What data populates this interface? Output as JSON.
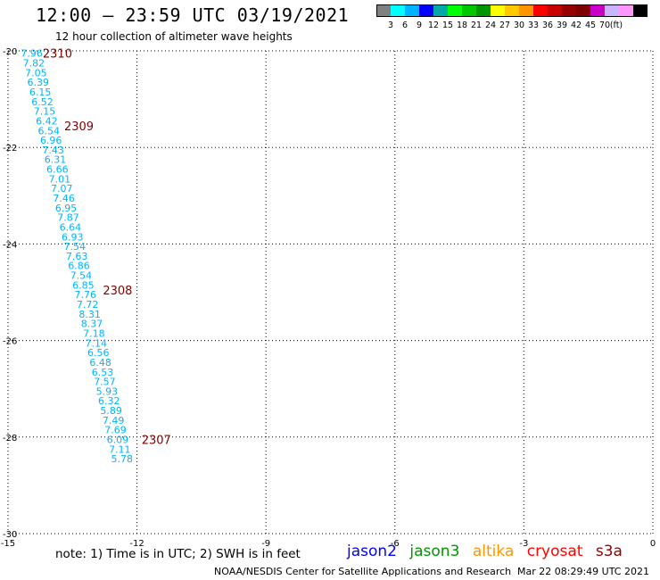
{
  "header": {
    "title": "12:00 – 23:59 UTC 03/19/2021",
    "subtitle": "12 hour collection of altimeter wave heights"
  },
  "colorbar": {
    "colors": [
      "#808080",
      "#00ffff",
      "#00b4ff",
      "#0000ff",
      "#00a8a8",
      "#00ff00",
      "#00c800",
      "#009600",
      "#ffff00",
      "#ffc800",
      "#ff9600",
      "#ff0000",
      "#c80000",
      "#960000",
      "#800000",
      "#c800c8",
      "#c8b4ff",
      "#ff96ff",
      "#000000"
    ],
    "labels": [
      "3",
      "6",
      "9",
      "12",
      "15",
      "18",
      "21",
      "24",
      "27",
      "30",
      "33",
      "36",
      "39",
      "42",
      "45",
      "70"
    ],
    "unit": "(ft)"
  },
  "chart_data": {
    "type": "scatter",
    "title": "12:00 – 23:59 UTC 03/19/2021",
    "subtitle": "12 hour collection of altimeter wave heights",
    "xlim": [
      -15,
      0
    ],
    "ylim": [
      -30,
      -20
    ],
    "x_ticks": [
      "-15",
      "-12",
      "-9",
      "-6",
      "-3",
      "0"
    ],
    "y_ticks": [
      "-20",
      "-22",
      "-24",
      "-26",
      "-28",
      "-30"
    ],
    "grid": true,
    "grid_style": "dotted",
    "value_color": "#00b4ff",
    "time_color": "#800000",
    "wave_heights": [
      {
        "lon": -14.45,
        "lat": -20.05,
        "value": "7.96"
      },
      {
        "lon": -14.4,
        "lat": -20.25,
        "value": "7.82"
      },
      {
        "lon": -14.35,
        "lat": -20.45,
        "value": "7.05"
      },
      {
        "lon": -14.3,
        "lat": -20.65,
        "value": "6.39"
      },
      {
        "lon": -14.25,
        "lat": -20.85,
        "value": "6.15"
      },
      {
        "lon": -14.2,
        "lat": -21.05,
        "value": "6.52"
      },
      {
        "lon": -14.15,
        "lat": -21.25,
        "value": "7.15"
      },
      {
        "lon": -14.1,
        "lat": -21.45,
        "value": "6.42"
      },
      {
        "lon": -14.05,
        "lat": -21.65,
        "value": "6.54"
      },
      {
        "lon": -14.0,
        "lat": -21.85,
        "value": "6.96"
      },
      {
        "lon": -13.95,
        "lat": -22.05,
        "value": "7.43"
      },
      {
        "lon": -13.9,
        "lat": -22.25,
        "value": "6.31"
      },
      {
        "lon": -13.85,
        "lat": -22.45,
        "value": "6.66"
      },
      {
        "lon": -13.8,
        "lat": -22.65,
        "value": "7.01"
      },
      {
        "lon": -13.75,
        "lat": -22.85,
        "value": "7.07"
      },
      {
        "lon": -13.7,
        "lat": -23.05,
        "value": "7.46"
      },
      {
        "lon": -13.65,
        "lat": -23.25,
        "value": "6.95"
      },
      {
        "lon": -13.6,
        "lat": -23.45,
        "value": "7.87"
      },
      {
        "lon": -13.55,
        "lat": -23.65,
        "value": "6.64"
      },
      {
        "lon": -13.5,
        "lat": -23.85,
        "value": "6.93"
      },
      {
        "lon": -13.45,
        "lat": -24.05,
        "value": "7.54"
      },
      {
        "lon": -13.4,
        "lat": -24.25,
        "value": "7.63"
      },
      {
        "lon": -13.35,
        "lat": -24.45,
        "value": "6.86"
      },
      {
        "lon": -13.3,
        "lat": -24.65,
        "value": "7.54"
      },
      {
        "lon": -13.25,
        "lat": -24.85,
        "value": "6.85"
      },
      {
        "lon": -13.2,
        "lat": -25.05,
        "value": "7.76"
      },
      {
        "lon": -13.15,
        "lat": -25.25,
        "value": "7.72"
      },
      {
        "lon": -13.1,
        "lat": -25.45,
        "value": "8.31"
      },
      {
        "lon": -13.05,
        "lat": -25.65,
        "value": "8.37"
      },
      {
        "lon": -13.0,
        "lat": -25.85,
        "value": "7.18"
      },
      {
        "lon": -12.95,
        "lat": -26.05,
        "value": "7.14"
      },
      {
        "lon": -12.9,
        "lat": -26.25,
        "value": "6.56"
      },
      {
        "lon": -12.85,
        "lat": -26.45,
        "value": "6.48"
      },
      {
        "lon": -12.8,
        "lat": -26.65,
        "value": "6.53"
      },
      {
        "lon": -12.75,
        "lat": -26.85,
        "value": "7.57"
      },
      {
        "lon": -12.7,
        "lat": -27.05,
        "value": "5.93"
      },
      {
        "lon": -12.65,
        "lat": -27.25,
        "value": "6.32"
      },
      {
        "lon": -12.6,
        "lat": -27.45,
        "value": "5.89"
      },
      {
        "lon": -12.55,
        "lat": -27.65,
        "value": "7.49"
      },
      {
        "lon": -12.5,
        "lat": -27.85,
        "value": "7.69"
      },
      {
        "lon": -12.45,
        "lat": -28.05,
        "value": "6.09"
      },
      {
        "lon": -12.4,
        "lat": -28.25,
        "value": "7.11"
      },
      {
        "lon": -12.35,
        "lat": -28.45,
        "value": "5.78"
      }
    ],
    "time_labels": [
      {
        "lon": -13.85,
        "lat": -20.05,
        "value": "2310"
      },
      {
        "lon": -13.35,
        "lat": -21.55,
        "value": "2309"
      },
      {
        "lon": -12.45,
        "lat": -24.95,
        "value": "2308"
      },
      {
        "lon": -11.55,
        "lat": -28.05,
        "value": "2307"
      }
    ]
  },
  "footer": {
    "note": "note: 1) Time is in UTC; 2) SWH is in feet",
    "missions": [
      {
        "label": "jason2",
        "color": "#0000ff"
      },
      {
        "label": "jason3",
        "color": "#009600"
      },
      {
        "label": "altika",
        "color": "#ff9600"
      },
      {
        "label": "cryosat",
        "color": "#ff0000"
      },
      {
        "label": "s3a",
        "color": "#960000"
      }
    ],
    "credit": "NOAA/NESDIS Center for Satellite Applications and Research",
    "timestamp": "Mar 22 08:29:49 UTC 2021"
  }
}
